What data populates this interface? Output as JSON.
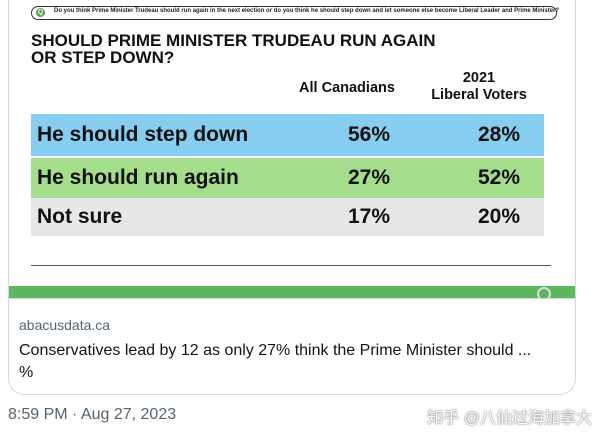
{
  "question": "Do you think Prime Minister Trudeau should run again in the next election or do you think he should step down and let someone else become Liberal Leader and Prime Minister?",
  "title_line1": "SHOULD PRIME MINISTER TRUDEAU RUN AGAIN",
  "title_line2": "OR STEP DOWN?",
  "columns": {
    "all": "All Canadians",
    "liberal_line1": "2021",
    "liberal_line2": "Liberal Voters"
  },
  "rows": [
    {
      "label": "He should step down",
      "all": "56%",
      "liberal": "28%"
    },
    {
      "label": "He should run again",
      "all": "27%",
      "liberal": "52%"
    },
    {
      "label": "Not sure",
      "all": "17%",
      "liberal": "20%"
    }
  ],
  "card": {
    "domain": "abacusdata.ca",
    "description_line1": "Conservatives lead by 12 as only 27% think the Prime Minister should ...",
    "description_line2": "%"
  },
  "timestamp": "8:59 PM · Aug 27, 2023",
  "watermark": "知乎 @八仙过海加拿大",
  "colors": {
    "step_down": "#86cdf0",
    "run_again": "#a4dd8c",
    "not_sure": "#e7e7e7"
  }
}
